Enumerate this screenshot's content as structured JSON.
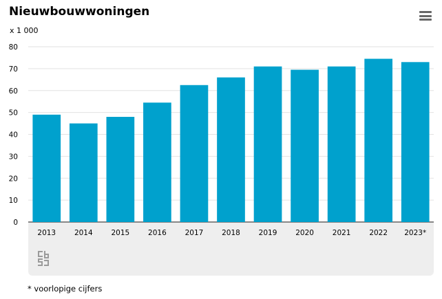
{
  "header": {
    "title": "Nieuwbouwwoningen",
    "unit": "x 1 000",
    "menu_icon": "hamburger-menu-icon"
  },
  "chart_data": {
    "type": "bar",
    "categories": [
      "2013",
      "2014",
      "2015",
      "2016",
      "2017",
      "2018",
      "2019",
      "2020",
      "2021",
      "2022",
      "2023*"
    ],
    "values": [
      49,
      45,
      48,
      54.5,
      62.5,
      66,
      71,
      69.5,
      71,
      74.5,
      73
    ],
    "title": "Nieuwbouwwoningen",
    "ylabel": "x 1 000",
    "xlabel": "",
    "ylim": [
      0,
      80
    ],
    "yticks": [
      "0",
      "10",
      "20",
      "30",
      "40",
      "50",
      "60",
      "70",
      "80"
    ],
    "grid": true,
    "bar_color": "#00a1cd"
  },
  "logo": {
    "icon": "cbs-logo-icon"
  },
  "footnote": "* voorlopige cijfers"
}
